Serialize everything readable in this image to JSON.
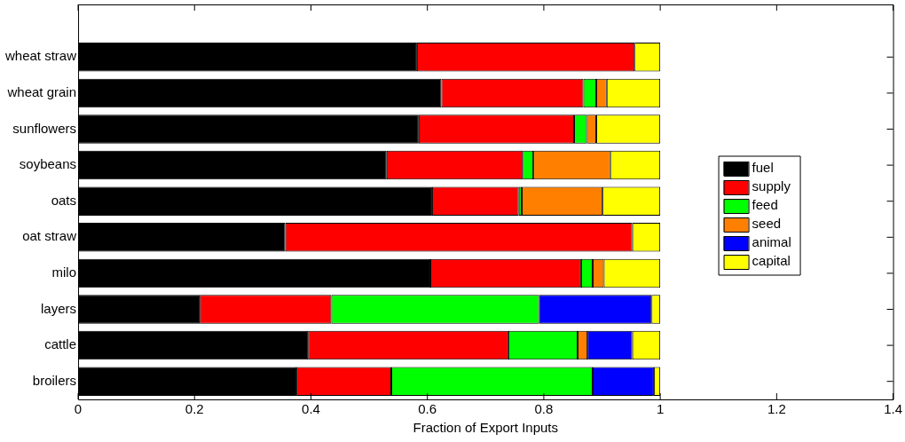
{
  "chart_data": {
    "type": "bar",
    "orientation": "horizontal",
    "stacked": true,
    "xlabel": "Fraction of Export Inputs",
    "categories": [
      "wheat straw",
      "wheat grain",
      "sunflowers",
      "soybeans",
      "oats",
      "oat straw",
      "milo",
      "layers",
      "cattle",
      "broilers"
    ],
    "series": [
      {
        "name": "fuel",
        "color": "#000000",
        "values": [
          0.582,
          0.624,
          0.585,
          0.53,
          0.608,
          0.356,
          0.605,
          0.209,
          0.395,
          0.375
        ]
      },
      {
        "name": "supply",
        "color": "#ff0000",
        "values": [
          0.374,
          0.244,
          0.267,
          0.234,
          0.149,
          0.596,
          0.259,
          0.226,
          0.344,
          0.163
        ]
      },
      {
        "name": "feed",
        "color": "#00ff00",
        "values": [
          null,
          0.022,
          0.022,
          0.018,
          0.005,
          null,
          0.02,
          0.357,
          0.119,
          0.346
        ]
      },
      {
        "name": "seed",
        "color": "#ff8000",
        "values": [
          null,
          0.018,
          0.016,
          0.132,
          0.139,
          null,
          0.019,
          null,
          0.017,
          null
        ]
      },
      {
        "name": "animal",
        "color": "#0000ff",
        "values": [
          null,
          null,
          null,
          null,
          null,
          null,
          null,
          0.193,
          0.077,
          0.105
        ]
      },
      {
        "name": "capital",
        "color": "#ffff00",
        "values": [
          0.044,
          0.092,
          0.11,
          0.086,
          0.099,
          0.048,
          0.097,
          0.015,
          0.048,
          0.011
        ]
      }
    ],
    "xlim": [
      0,
      1.4
    ],
    "xticks": [
      0,
      0.2,
      0.4,
      0.6,
      0.8,
      1,
      1.2,
      1.4
    ],
    "grid": false,
    "legend": "right"
  }
}
